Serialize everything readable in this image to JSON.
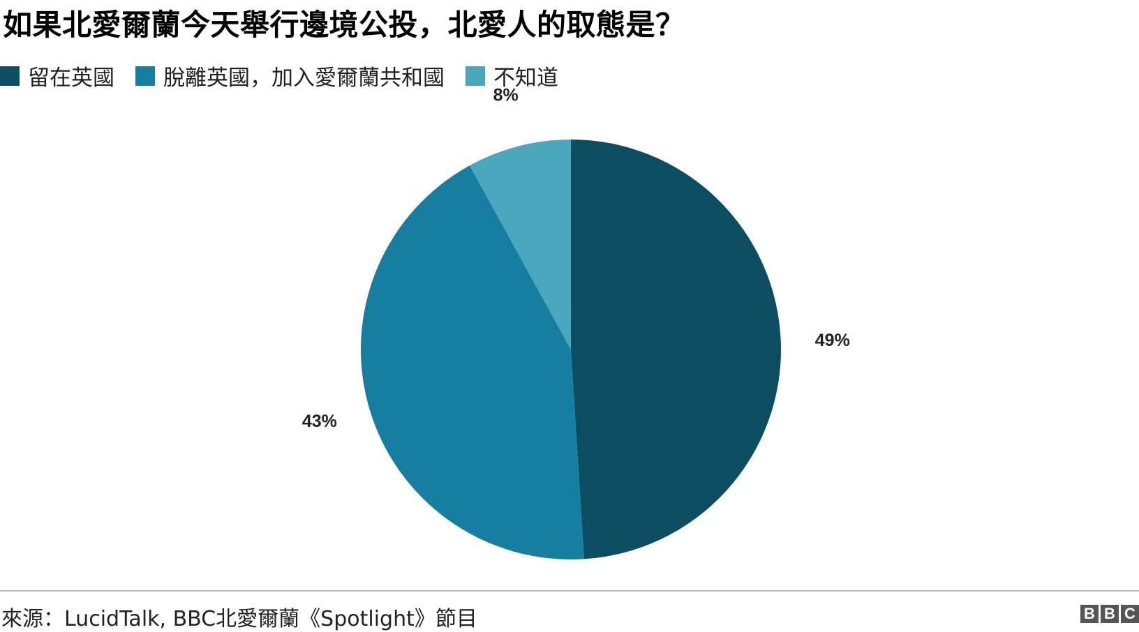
{
  "chart_data": {
    "type": "pie",
    "title": "如果北愛爾蘭今天舉行邊境公投，北愛人的取態是？",
    "categories": [
      "留在英國",
      "脫離英國，加入愛爾蘭共和國",
      "不知道"
    ],
    "values": [
      49,
      43,
      8
    ],
    "data_labels": [
      "49%",
      "43%",
      "8%"
    ],
    "colors": [
      "#0c4d61",
      "#167fa1",
      "#4ba7bd"
    ],
    "legend_position": "top-left",
    "start_angle": "12 o'clock, clockwise"
  },
  "footer": {
    "source": "來源：LucidTalk, BBC北愛爾蘭《Spotlight》節目",
    "logo": [
      "B",
      "B",
      "C"
    ]
  }
}
